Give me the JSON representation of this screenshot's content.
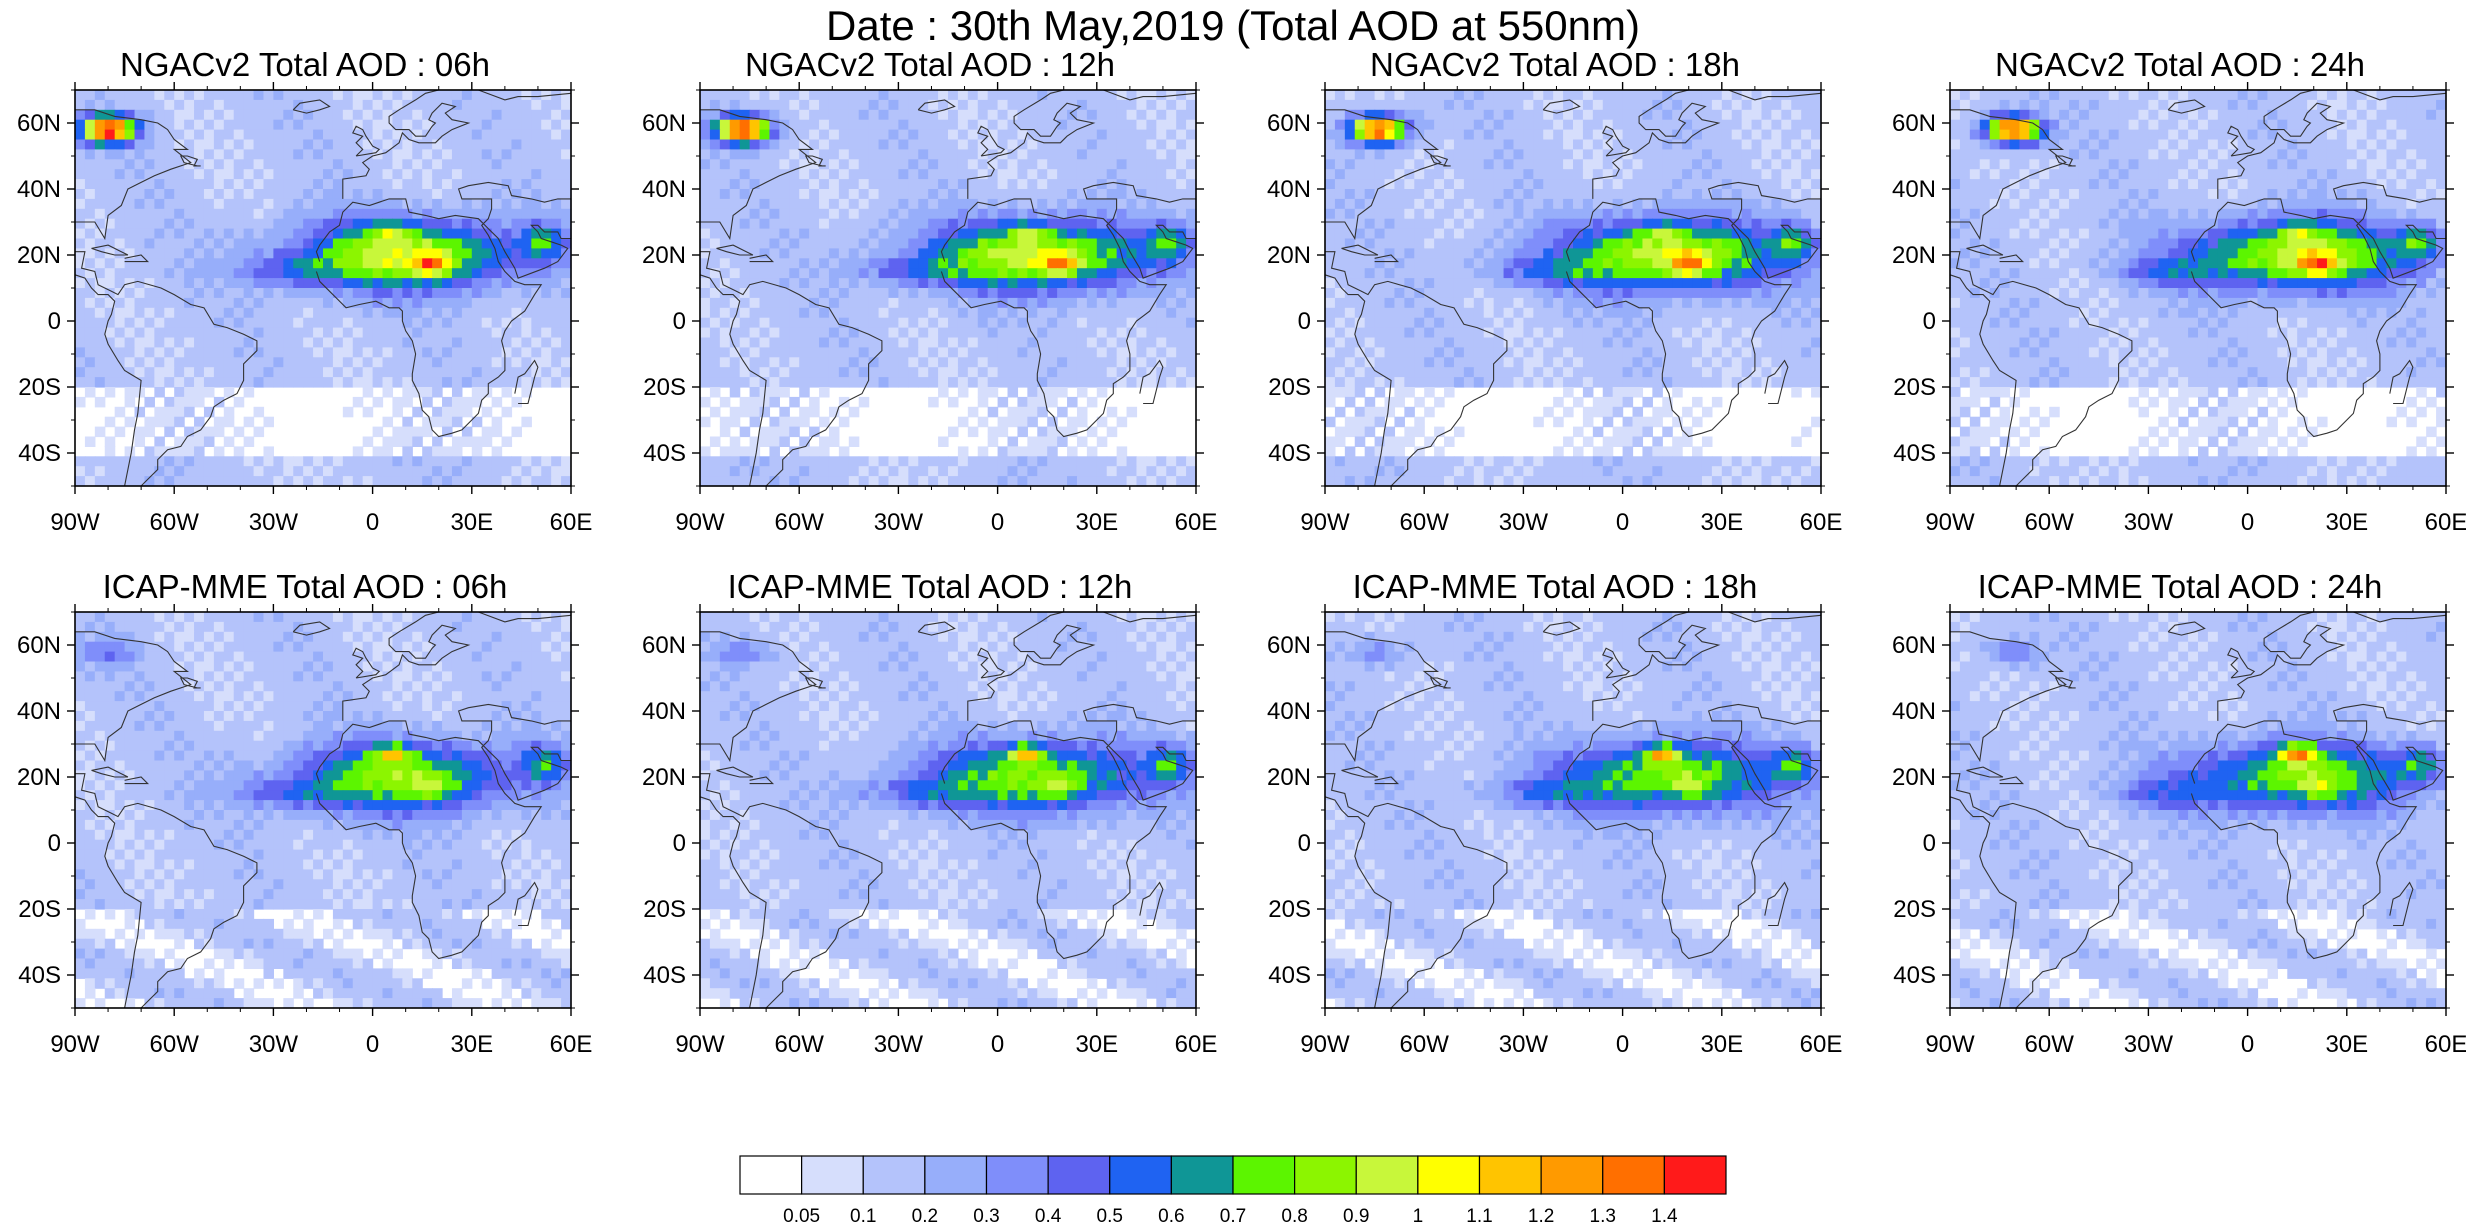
{
  "title": "Date : 30th May,2019 (Total AOD at 550nm)",
  "panels": [
    {
      "title": "NGACv2 Total AOD : 06h",
      "model": "ngac",
      "step": 0
    },
    {
      "title": "NGACv2 Total AOD : 12h",
      "model": "ngac",
      "step": 1
    },
    {
      "title": "NGACv2 Total AOD : 18h",
      "model": "ngac",
      "step": 2
    },
    {
      "title": "NGACv2 Total AOD : 24h",
      "model": "ngac",
      "step": 3
    },
    {
      "title": "ICAP-MME Total AOD : 06h",
      "model": "icap",
      "step": 0
    },
    {
      "title": "ICAP-MME Total AOD : 12h",
      "model": "icap",
      "step": 1
    },
    {
      "title": "ICAP-MME Total AOD : 18h",
      "model": "icap",
      "step": 2
    },
    {
      "title": "ICAP-MME Total AOD : 24h",
      "model": "icap",
      "step": 3
    }
  ],
  "lat_labels": [
    "60N",
    "40N",
    "20N",
    "0",
    "20S",
    "40S"
  ],
  "lon_labels": [
    "90W",
    "60W",
    "30W",
    "0",
    "30E",
    "60E"
  ],
  "chart_data": {
    "type": "heatmap",
    "variable": "Total AOD at 550nm",
    "lat_range": [
      -50,
      70
    ],
    "lon_range": [
      -90,
      60
    ],
    "colorbar": {
      "levels": [
        "0.05",
        "0.1",
        "0.2",
        "0.3",
        "0.4",
        "0.5",
        "0.6",
        "0.7",
        "0.8",
        "0.9",
        "1",
        "1.1",
        "1.2",
        "1.3",
        "1.4"
      ],
      "colors": [
        "#ffffff",
        "#d6defc",
        "#b4c3fb",
        "#97aefa",
        "#7f8efa",
        "#5e63f0",
        "#1f63f2",
        "#0f9696",
        "#5cf500",
        "#8cf500",
        "#c8f73a",
        "#ffff00",
        "#ffc400",
        "#ff9a00",
        "#ff6f00",
        "#ff1a1a"
      ]
    }
  }
}
